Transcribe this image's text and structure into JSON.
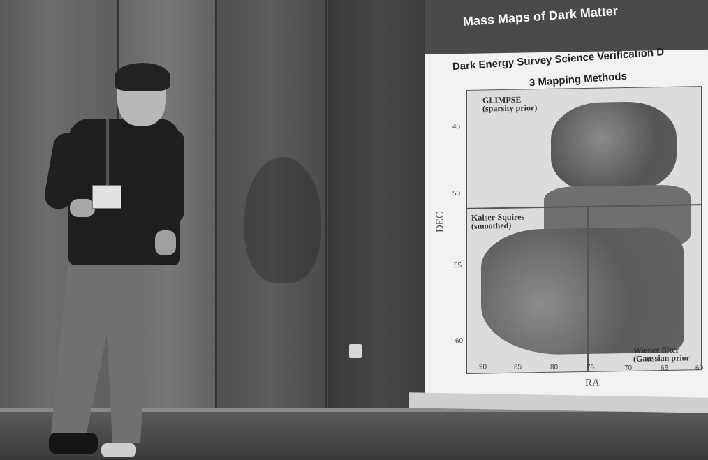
{
  "slide": {
    "title": "Mass Maps of Dark Matter",
    "plot_title": "Dark Energy Survey Science Verification D",
    "plot_subtitle": "3 Mapping Methods",
    "regions": [
      {
        "line1": "GLIMPSE",
        "line2": "(sparsity prior)"
      },
      {
        "line1": "Kaiser-Squires",
        "line2": "(smoothed)"
      },
      {
        "line1": "Wiener filter",
        "line2": "(Gaussian prior"
      }
    ],
    "y_axis": {
      "label": "DEC",
      "ticks": [
        "45",
        "50",
        "55",
        "60"
      ]
    },
    "x_axis": {
      "label": "RA",
      "ticks": [
        "90",
        "85",
        "80",
        "75",
        "70",
        "65",
        "60"
      ]
    }
  }
}
